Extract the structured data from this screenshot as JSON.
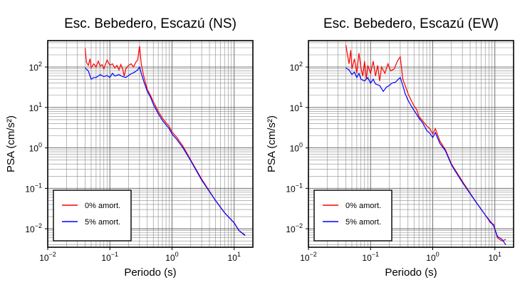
{
  "chart_data": [
    {
      "type": "line",
      "title": "Esc. Bebedero, Escazú (NS)",
      "xlabel": "Periodo (s)",
      "ylabel": "PSA (cm/s²)",
      "xscale": "log",
      "yscale": "log",
      "xlim": [
        0.01,
        20
      ],
      "ylim": [
        0.0035,
        450
      ],
      "grid": true,
      "legend_position": "bottom-left",
      "xtick_labels": [
        {
          "base": "10",
          "exp": "−2",
          "value": 0.01
        },
        {
          "base": "10",
          "exp": "−1",
          "value": 0.1
        },
        {
          "base": "10",
          "exp": "0",
          "value": 1
        },
        {
          "base": "10",
          "exp": "1",
          "value": 10
        }
      ],
      "ytick_labels": [
        {
          "base": "10",
          "exp": "−2",
          "value": 0.01
        },
        {
          "base": "10",
          "exp": "−1",
          "value": 0.1
        },
        {
          "base": "10",
          "exp": "0",
          "value": 1
        },
        {
          "base": "10",
          "exp": "1",
          "value": 10
        },
        {
          "base": "10",
          "exp": "2",
          "value": 100
        }
      ],
      "series": [
        {
          "name": "0% amort.",
          "color": "#ff0000",
          "x": [
            0.04,
            0.042,
            0.045,
            0.048,
            0.05,
            0.055,
            0.06,
            0.065,
            0.07,
            0.075,
            0.08,
            0.09,
            0.1,
            0.11,
            0.12,
            0.13,
            0.14,
            0.15,
            0.16,
            0.17,
            0.18,
            0.2,
            0.22,
            0.24,
            0.26,
            0.28,
            0.3,
            0.32,
            0.35,
            0.4,
            0.45,
            0.5,
            0.6,
            0.7,
            0.8,
            0.9,
            1.0,
            1.2,
            1.5,
            2.0,
            3.0,
            5.0,
            7.0,
            10.0,
            12.0,
            15.0
          ],
          "y": [
            290,
            130,
            110,
            160,
            95,
            120,
            100,
            140,
            105,
            115,
            90,
            150,
            110,
            120,
            95,
            110,
            85,
            115,
            90,
            60,
            90,
            110,
            120,
            100,
            130,
            150,
            330,
            120,
            60,
            28,
            20,
            14,
            8,
            5.5,
            4.2,
            3.4,
            2.5,
            1.8,
            1.1,
            0.5,
            0.17,
            0.05,
            0.025,
            0.014,
            0.009,
            0.007
          ]
        },
        {
          "name": "5% amort.",
          "color": "#0000ff",
          "x": [
            0.04,
            0.045,
            0.05,
            0.055,
            0.06,
            0.07,
            0.08,
            0.09,
            0.1,
            0.11,
            0.12,
            0.14,
            0.16,
            0.18,
            0.2,
            0.22,
            0.25,
            0.28,
            0.3,
            0.32,
            0.35,
            0.4,
            0.45,
            0.5,
            0.6,
            0.7,
            0.8,
            0.9,
            1.0,
            1.2,
            1.5,
            2.0,
            3.0,
            5.0,
            7.0,
            10.0,
            12.0,
            15.0
          ],
          "y": [
            95,
            80,
            50,
            55,
            55,
            65,
            58,
            62,
            55,
            70,
            60,
            65,
            58,
            55,
            62,
            68,
            75,
            85,
            100,
            70,
            45,
            25,
            18,
            12,
            7,
            4.8,
            3.7,
            3.0,
            2.2,
            1.6,
            1.0,
            0.48,
            0.16,
            0.05,
            0.025,
            0.014,
            0.009,
            0.0068
          ]
        }
      ]
    },
    {
      "type": "line",
      "title": "Esc. Bebedero, Escazú (EW)",
      "xlabel": "Periodo (s)",
      "ylabel": "PSA (cm/s²)",
      "xscale": "log",
      "yscale": "log",
      "xlim": [
        0.01,
        20
      ],
      "ylim": [
        0.0035,
        450
      ],
      "grid": true,
      "legend_position": "bottom-left",
      "xtick_labels": [
        {
          "base": "10",
          "exp": "−2",
          "value": 0.01
        },
        {
          "base": "10",
          "exp": "−1",
          "value": 0.1
        },
        {
          "base": "10",
          "exp": "0",
          "value": 1
        },
        {
          "base": "10",
          "exp": "1",
          "value": 10
        }
      ],
      "ytick_labels": [
        {
          "base": "10",
          "exp": "−2",
          "value": 0.01
        },
        {
          "base": "10",
          "exp": "−1",
          "value": 0.1
        },
        {
          "base": "10",
          "exp": "0",
          "value": 1
        },
        {
          "base": "10",
          "exp": "1",
          "value": 10
        },
        {
          "base": "10",
          "exp": "2",
          "value": 100
        }
      ],
      "series": [
        {
          "name": "0% amort.",
          "color": "#ff0000",
          "x": [
            0.04,
            0.042,
            0.045,
            0.048,
            0.05,
            0.055,
            0.06,
            0.065,
            0.07,
            0.075,
            0.08,
            0.085,
            0.09,
            0.1,
            0.11,
            0.12,
            0.13,
            0.14,
            0.15,
            0.17,
            0.19,
            0.21,
            0.24,
            0.27,
            0.3,
            0.33,
            0.36,
            0.4,
            0.45,
            0.5,
            0.55,
            0.6,
            0.7,
            0.8,
            0.9,
            1.0,
            1.1,
            1.3,
            1.6,
            2.0,
            3.0,
            5.0,
            7.0,
            8.5,
            9.5,
            11.0,
            13.0,
            15.0
          ],
          "y": [
            350,
            220,
            120,
            260,
            90,
            160,
            70,
            220,
            95,
            60,
            140,
            50,
            110,
            70,
            140,
            60,
            110,
            45,
            100,
            70,
            120,
            80,
            90,
            140,
            180,
            50,
            35,
            22,
            15,
            11,
            9,
            6,
            4.5,
            3.5,
            3.0,
            2.2,
            3.0,
            1.5,
            0.9,
            0.4,
            0.15,
            0.045,
            0.022,
            0.014,
            0.013,
            0.006,
            0.005,
            0.0055
          ]
        },
        {
          "name": "5% amort.",
          "color": "#0000ff",
          "x": [
            0.04,
            0.045,
            0.05,
            0.055,
            0.06,
            0.065,
            0.07,
            0.08,
            0.09,
            0.1,
            0.11,
            0.12,
            0.14,
            0.16,
            0.18,
            0.2,
            0.22,
            0.25,
            0.28,
            0.3,
            0.33,
            0.36,
            0.4,
            0.45,
            0.5,
            0.6,
            0.7,
            0.8,
            0.9,
            1.0,
            1.1,
            1.3,
            1.6,
            2.0,
            3.0,
            5.0,
            7.0,
            8.5,
            9.5,
            11.0,
            13.0,
            15.0
          ],
          "y": [
            95,
            85,
            65,
            75,
            55,
            70,
            50,
            45,
            55,
            40,
            50,
            38,
            35,
            25,
            32,
            35,
            40,
            42,
            50,
            55,
            35,
            22,
            15,
            11,
            8.5,
            5.5,
            4.0,
            2.7,
            2.3,
            1.8,
            2.4,
            1.3,
            0.85,
            0.38,
            0.14,
            0.045,
            0.022,
            0.015,
            0.012,
            0.0065,
            0.0055,
            0.004
          ]
        }
      ]
    }
  ]
}
